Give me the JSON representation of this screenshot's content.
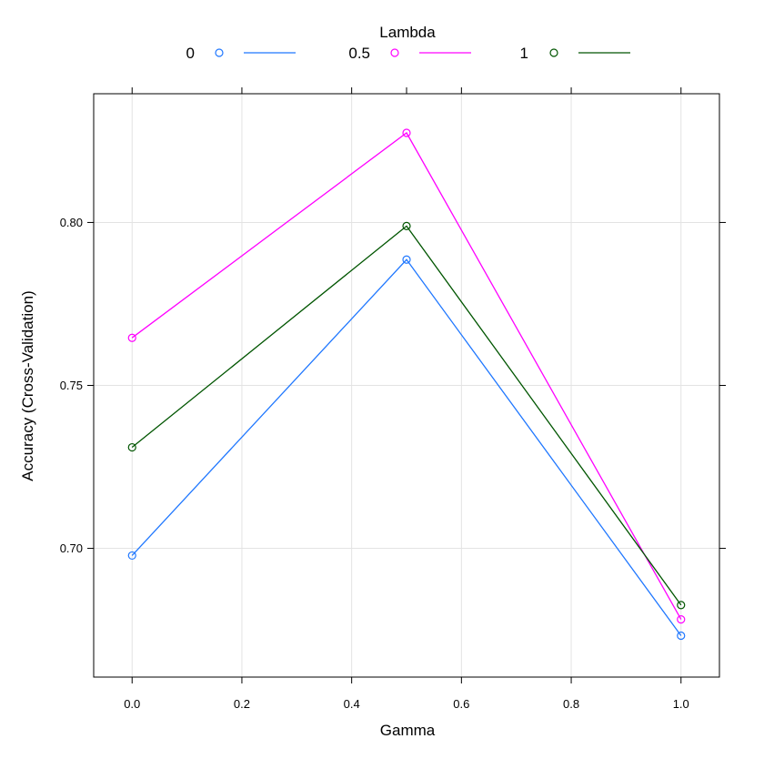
{
  "chart_data": {
    "type": "line",
    "title": "",
    "xlabel": "Gamma",
    "ylabel": "Accuracy (Cross-Validation)",
    "xlim": [
      -0.07,
      1.07
    ],
    "ylim": [
      0.6605,
      0.8395
    ],
    "grid": true,
    "legend": {
      "title": "Lambda",
      "position": "top"
    },
    "x_ticks": [
      {
        "value": 0.0,
        "label": "0.0"
      },
      {
        "value": 0.2,
        "label": "0.2"
      },
      {
        "value": 0.4,
        "label": "0.4"
      },
      {
        "value": 0.6,
        "label": "0.6"
      },
      {
        "value": 0.8,
        "label": "0.8"
      },
      {
        "value": 1.0,
        "label": "1.0"
      }
    ],
    "y_ticks": [
      {
        "value": 0.7,
        "label": "0.70"
      },
      {
        "value": 0.75,
        "label": "0.75"
      },
      {
        "value": 0.8,
        "label": "0.80"
      }
    ],
    "x": [
      0.0,
      0.5,
      1.0
    ],
    "series": [
      {
        "name": "0",
        "color": "#1f77ff",
        "values": [
          0.6978,
          0.7886,
          0.6732
        ]
      },
      {
        "name": "0.5",
        "color": "#ff00ff",
        "values": [
          0.7646,
          0.8275,
          0.6782
        ]
      },
      {
        "name": "1",
        "color": "#005500",
        "values": [
          0.731,
          0.7989,
          0.6826
        ]
      }
    ]
  }
}
